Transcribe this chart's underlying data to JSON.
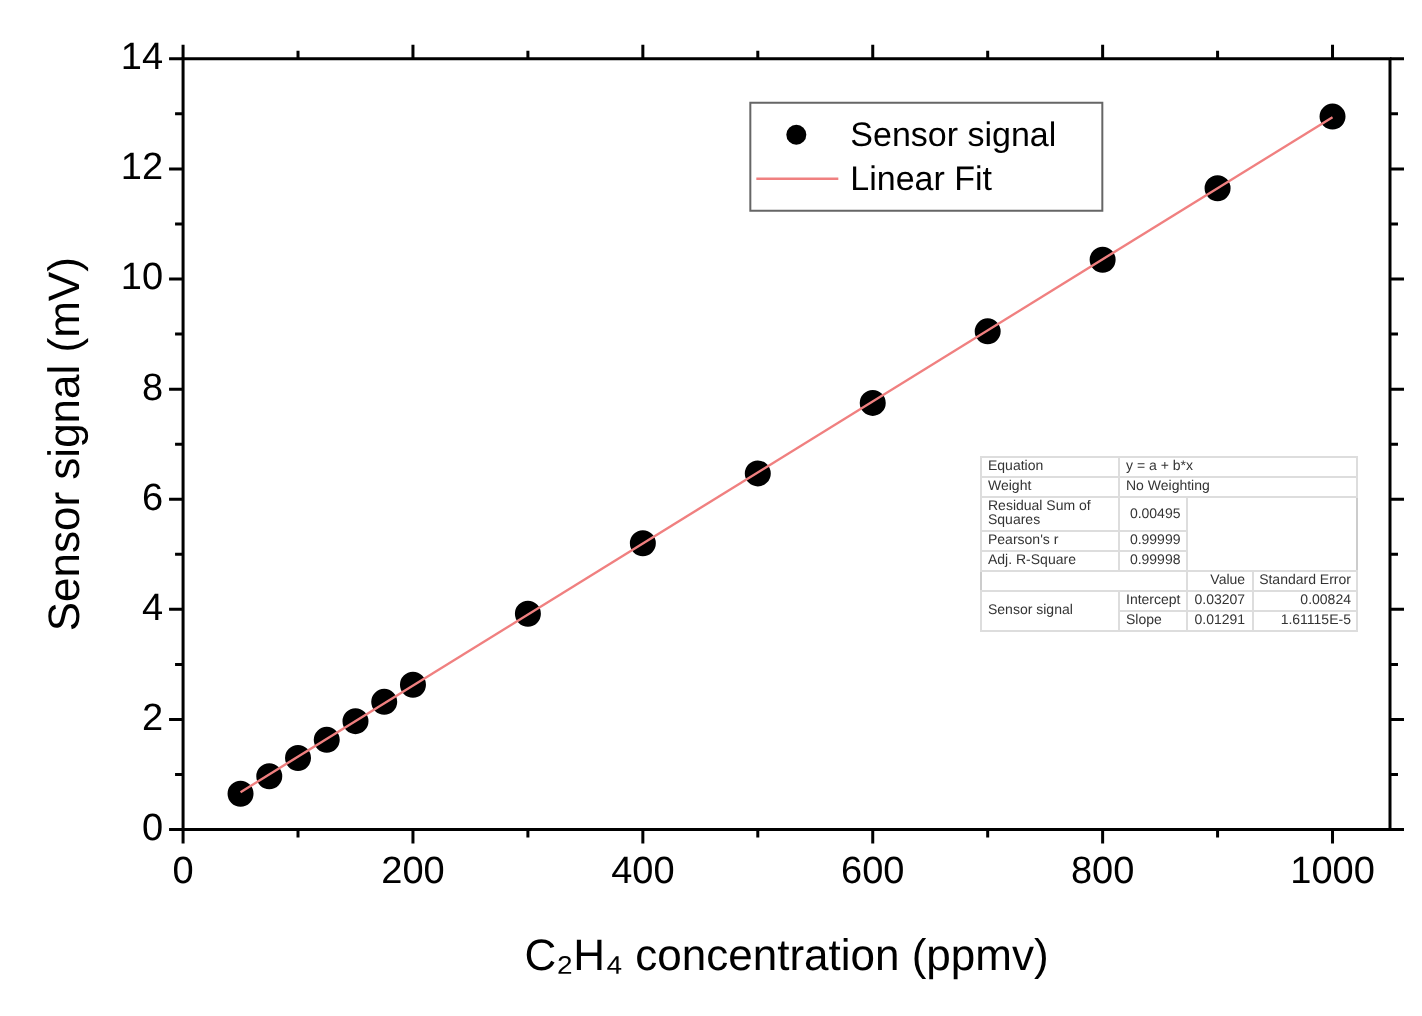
{
  "chart_data": {
    "type": "scatter",
    "xlabel": "C₂H₄ concentration (ppmv)",
    "ylabel": "Sensor signal (mV)",
    "x": [
      50,
      75,
      100,
      125,
      150,
      175,
      200,
      300,
      400,
      500,
      600,
      700,
      800,
      900,
      1000
    ],
    "series": [
      {
        "name": "Sensor signal",
        "type": "scatter",
        "color": "#000000",
        "marker": "circle",
        "values": [
          0.65,
          0.97,
          1.3,
          1.63,
          1.97,
          2.32,
          2.63,
          3.92,
          5.2,
          6.47,
          7.75,
          9.05,
          10.35,
          11.65,
          12.95
        ]
      },
      {
        "name": "Linear Fit",
        "type": "line",
        "color": "#f08080",
        "marker": "none",
        "line_style": "solid",
        "x": [
          50,
          1000
        ],
        "values": [
          0.68,
          12.94
        ]
      }
    ],
    "xlim": [
      0,
      1050
    ],
    "ylim": [
      0,
      14
    ],
    "xticks": [
      0,
      {
        "value": 100,
        "label": null
      },
      200,
      {
        "value": 300,
        "label": null
      },
      400,
      {
        "value": 500,
        "label": null
      },
      600,
      {
        "value": 700,
        "label": null
      },
      800,
      {
        "value": 900,
        "label": null
      },
      1000
    ],
    "yticks": [
      0,
      {
        "value": 1,
        "label": null
      },
      2,
      {
        "value": 3,
        "label": null
      },
      4,
      {
        "value": 5,
        "label": null
      },
      6,
      {
        "value": 7,
        "label": null
      },
      8,
      {
        "value": 9,
        "label": null
      },
      10,
      {
        "value": 11,
        "label": null
      },
      12,
      {
        "value": 13,
        "label": null
      },
      14
    ],
    "legend": "top right",
    "grid": false,
    "annotations": [
      "Equation",
      "y = a + b*x",
      "Weight",
      "No Weighting",
      "Residual Sum of Squares",
      "0.00495",
      "Pearson's r",
      "0.99999",
      "Adj. R-Square",
      "0.99998",
      "Value",
      "Standard Error",
      "Sensor signal",
      "Intercept",
      "0.03207",
      "0.00824",
      "Slope",
      "0.01291",
      "1.61115E-5"
    ]
  }
}
